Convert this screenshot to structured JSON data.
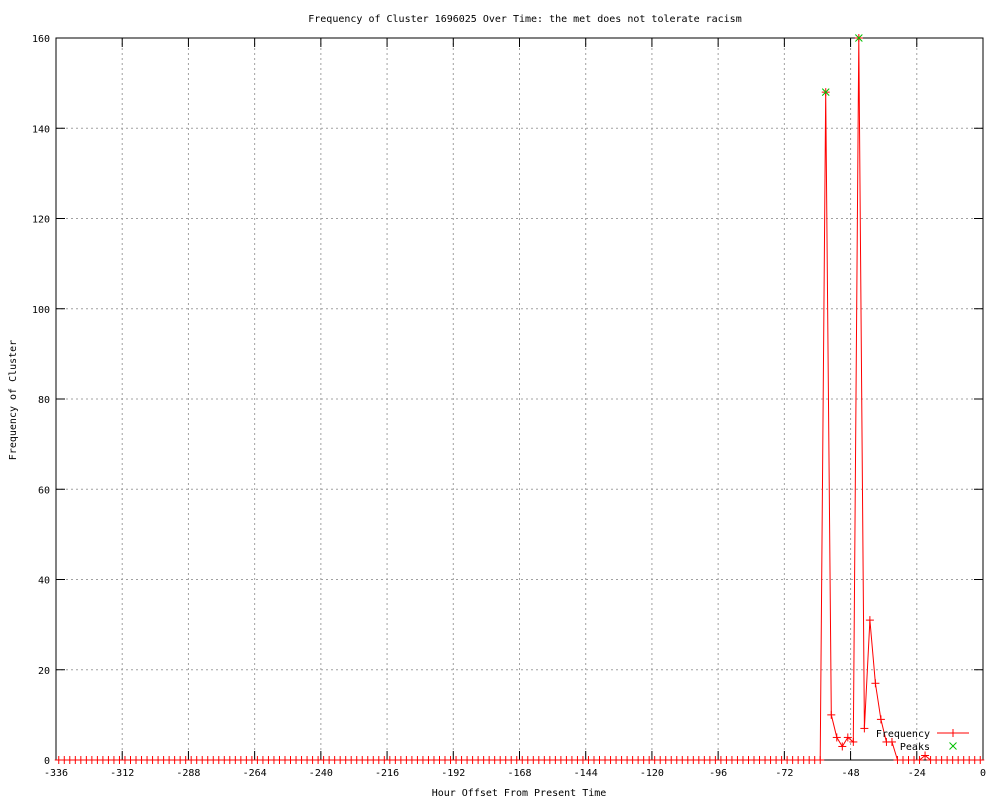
{
  "chart_data": {
    "type": "line",
    "title": "Frequency of Cluster 1696025 Over Time: the met does not tolerate racism",
    "xlabel": "Hour Offset From Present Time",
    "ylabel": "Frequency of Cluster",
    "xlim": [
      -336,
      0
    ],
    "ylim": [
      0,
      160
    ],
    "xticks": [
      -336,
      -312,
      -288,
      -264,
      -240,
      -216,
      -192,
      -168,
      -144,
      -120,
      -96,
      -72,
      -48,
      -24,
      0
    ],
    "yticks": [
      0,
      20,
      40,
      60,
      80,
      100,
      120,
      140,
      160
    ],
    "grid": true,
    "legend_placement": "bottom-right",
    "colors": {
      "frequency": "#ff0000",
      "peaks": "#00c000",
      "grid": "#a0a0a0",
      "axis": "#000000"
    },
    "series": [
      {
        "name": "Frequency",
        "marker": "plus",
        "x": [
          -335,
          -333,
          -331,
          -329,
          -327,
          -325,
          -323,
          -321,
          -319,
          -317,
          -315,
          -313,
          -311,
          -309,
          -307,
          -305,
          -303,
          -301,
          -299,
          -297,
          -295,
          -293,
          -291,
          -289,
          -287,
          -285,
          -283,
          -281,
          -279,
          -277,
          -275,
          -273,
          -271,
          -269,
          -267,
          -265,
          -263,
          -261,
          -259,
          -257,
          -255,
          -253,
          -251,
          -249,
          -247,
          -245,
          -243,
          -241,
          -239,
          -237,
          -235,
          -233,
          -231,
          -229,
          -227,
          -225,
          -223,
          -221,
          -219,
          -217,
          -215,
          -213,
          -211,
          -209,
          -207,
          -205,
          -203,
          -201,
          -199,
          -197,
          -195,
          -193,
          -191,
          -189,
          -187,
          -185,
          -183,
          -181,
          -179,
          -177,
          -175,
          -173,
          -171,
          -169,
          -167,
          -165,
          -163,
          -161,
          -159,
          -157,
          -155,
          -153,
          -151,
          -149,
          -147,
          -145,
          -143,
          -141,
          -139,
          -137,
          -135,
          -133,
          -131,
          -129,
          -127,
          -125,
          -123,
          -121,
          -119,
          -117,
          -115,
          -113,
          -111,
          -109,
          -107,
          -105,
          -103,
          -101,
          -99,
          -97,
          -95,
          -93,
          -91,
          -89,
          -87,
          -85,
          -83,
          -81,
          -79,
          -77,
          -75,
          -73,
          -71,
          -69,
          -67,
          -65,
          -63,
          -61,
          -59,
          -57,
          -55,
          -53,
          -51,
          -49,
          -47,
          -45,
          -43,
          -41,
          -39,
          -37,
          -35,
          -33,
          -31,
          -29,
          -27,
          -25,
          -23,
          -21,
          -19,
          -17,
          -15,
          -13,
          -11,
          -9,
          -7,
          -5,
          -3,
          -1
        ],
        "y": [
          0,
          0,
          0,
          0,
          0,
          0,
          0,
          0,
          0,
          0,
          0,
          0,
          0,
          0,
          0,
          0,
          0,
          0,
          0,
          0,
          0,
          0,
          0,
          0,
          0,
          0,
          0,
          0,
          0,
          0,
          0,
          0,
          0,
          0,
          0,
          0,
          0,
          0,
          0,
          0,
          0,
          0,
          0,
          0,
          0,
          0,
          0,
          0,
          0,
          0,
          0,
          0,
          0,
          0,
          0,
          0,
          0,
          0,
          0,
          0,
          0,
          0,
          0,
          0,
          0,
          0,
          0,
          0,
          0,
          0,
          0,
          0,
          0,
          0,
          0,
          0,
          0,
          0,
          0,
          0,
          0,
          0,
          0,
          0,
          0,
          0,
          0,
          0,
          0,
          0,
          0,
          0,
          0,
          0,
          0,
          0,
          0,
          0,
          0,
          0,
          0,
          0,
          0,
          0,
          0,
          0,
          0,
          0,
          0,
          0,
          0,
          0,
          0,
          0,
          0,
          0,
          0,
          0,
          0,
          0,
          0,
          0,
          0,
          0,
          0,
          0,
          0,
          0,
          0,
          0,
          0,
          0,
          0,
          0,
          0,
          0,
          0,
          0,
          0,
          148,
          10,
          5,
          3,
          5,
          4,
          160,
          7,
          31,
          17,
          9,
          4,
          4,
          0,
          0,
          0,
          0,
          0,
          1,
          0,
          0,
          0,
          0,
          0,
          0,
          0,
          0,
          0,
          0
        ]
      },
      {
        "name": "Peaks",
        "marker": "x",
        "x": [
          -57,
          -45
        ],
        "y": [
          148,
          160
        ]
      }
    ]
  }
}
